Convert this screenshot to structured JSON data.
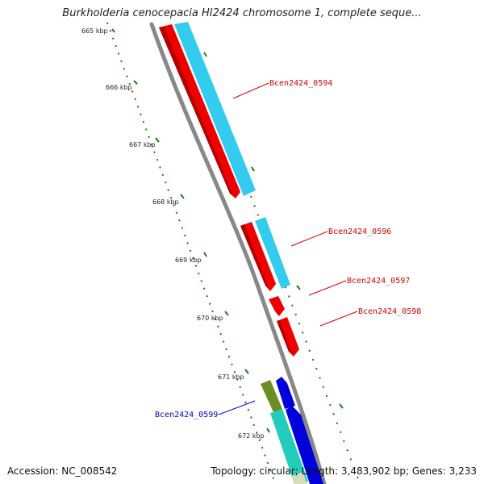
{
  "title": "Burkholderia cenocepacia HI2424 chromosome 1, complete seque...",
  "footer": {
    "accession": "Accession: NC_008542",
    "summary": "Topology: circular; Length: 3,483,902 bp; Genes: 3,233"
  },
  "scale": {
    "unit": "kbp",
    "ticks": [
      "665 kbp",
      "666 kbp",
      "667 kbp",
      "668 kbp",
      "669 kbp",
      "670 kbp",
      "671 kbp",
      "672 kbp"
    ]
  },
  "gene_labels": [
    {
      "name": "Bcen2424_0594",
      "color": "#dd0000"
    },
    {
      "name": "Bcen2424_0596",
      "color": "#dd0000"
    },
    {
      "name": "Bcen2424_0597",
      "color": "#dd0000"
    },
    {
      "name": "Bcen2424_0598",
      "color": "#dd0000"
    },
    {
      "name": "Bcen2424_0599",
      "color": "#0000cc"
    }
  ],
  "colors": {
    "backbone": "#888888",
    "tick_marks": "#1a7a1a",
    "gene_forward_red": "#ee0000",
    "gene_forward_blue": "#0000dd",
    "gene_olive": "#6b8e23",
    "gene_cyan_light": "#33ccee",
    "gene_teal": "#22ccbb"
  }
}
